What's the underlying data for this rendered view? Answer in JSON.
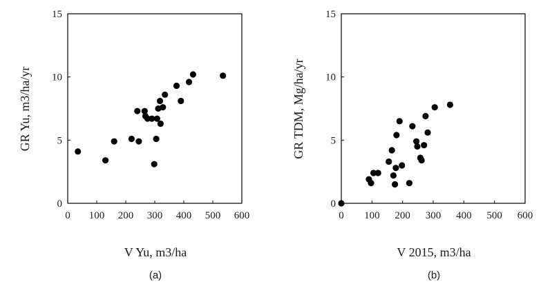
{
  "chart_data": [
    {
      "type": "scatter",
      "xlabel": "V Yu, m3/ha",
      "ylabel": "GR Yu, m3/ha/yr",
      "panel_label": "(a)",
      "xlim": [
        0,
        600
      ],
      "ylim": [
        0,
        15
      ],
      "xticks": [
        "0",
        "100",
        "200",
        "300",
        "400",
        "500",
        "600"
      ],
      "yticks": [
        "0",
        "5",
        "10",
        "15"
      ],
      "grid": false,
      "points": [
        {
          "x": 35,
          "y": 4.1
        },
        {
          "x": 130,
          "y": 3.4
        },
        {
          "x": 160,
          "y": 4.9
        },
        {
          "x": 220,
          "y": 5.1
        },
        {
          "x": 240,
          "y": 7.3
        },
        {
          "x": 245,
          "y": 4.9
        },
        {
          "x": 265,
          "y": 7.3
        },
        {
          "x": 268,
          "y": 6.9
        },
        {
          "x": 275,
          "y": 6.7
        },
        {
          "x": 290,
          "y": 6.7
        },
        {
          "x": 298,
          "y": 3.1
        },
        {
          "x": 305,
          "y": 5.1
        },
        {
          "x": 308,
          "y": 6.7
        },
        {
          "x": 312,
          "y": 7.5
        },
        {
          "x": 318,
          "y": 8.1
        },
        {
          "x": 320,
          "y": 6.3
        },
        {
          "x": 328,
          "y": 7.6
        },
        {
          "x": 335,
          "y": 8.6
        },
        {
          "x": 375,
          "y": 9.3
        },
        {
          "x": 390,
          "y": 8.1
        },
        {
          "x": 418,
          "y": 9.6
        },
        {
          "x": 432,
          "y": 10.2
        },
        {
          "x": 535,
          "y": 10.1
        }
      ]
    },
    {
      "type": "scatter",
      "xlabel": "V 2015, m3/ha",
      "ylabel": "GR TDM, Mg/ha/yr",
      "panel_label": "(b)",
      "xlim": [
        0,
        600
      ],
      "ylim": [
        0,
        15
      ],
      "xticks": [
        "0",
        "100",
        "200",
        "300",
        "400",
        "500",
        "600"
      ],
      "yticks": [
        "0",
        "5",
        "10",
        "15"
      ],
      "grid": false,
      "points": [
        {
          "x": 0,
          "y": 0.0
        },
        {
          "x": 90,
          "y": 1.9
        },
        {
          "x": 97,
          "y": 1.6
        },
        {
          "x": 105,
          "y": 2.4
        },
        {
          "x": 120,
          "y": 2.4
        },
        {
          "x": 155,
          "y": 3.3
        },
        {
          "x": 165,
          "y": 4.2
        },
        {
          "x": 170,
          "y": 2.2
        },
        {
          "x": 175,
          "y": 1.5
        },
        {
          "x": 178,
          "y": 2.8
        },
        {
          "x": 180,
          "y": 5.4
        },
        {
          "x": 190,
          "y": 6.5
        },
        {
          "x": 198,
          "y": 3.0
        },
        {
          "x": 222,
          "y": 1.6
        },
        {
          "x": 232,
          "y": 6.1
        },
        {
          "x": 245,
          "y": 4.9
        },
        {
          "x": 248,
          "y": 4.5
        },
        {
          "x": 258,
          "y": 3.6
        },
        {
          "x": 262,
          "y": 3.4
        },
        {
          "x": 270,
          "y": 4.6
        },
        {
          "x": 275,
          "y": 6.9
        },
        {
          "x": 282,
          "y": 5.6
        },
        {
          "x": 305,
          "y": 7.6
        },
        {
          "x": 355,
          "y": 7.8
        }
      ]
    }
  ]
}
